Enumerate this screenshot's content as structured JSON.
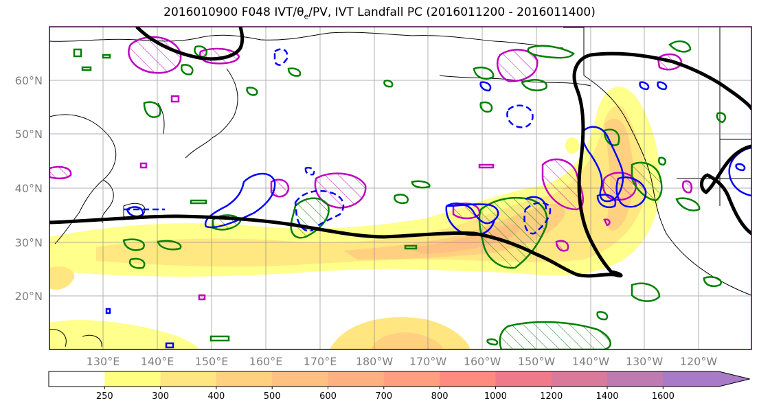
{
  "title": "2016010900 F048 IVT/θ",
  "title_sub": "e",
  "title_tail": "/PV, IVT Landfall PC (2016011200 - 2016011400)",
  "lat_labels": [
    "60°N",
    "50°N",
    "40°N",
    "30°N",
    "20°N"
  ],
  "lon_labels": [
    "130°E",
    "140°E",
    "150°E",
    "160°E",
    "170°E",
    "180°W",
    "170°W",
    "160°W",
    "150°W",
    "140°W",
    "130°W",
    "120°W"
  ],
  "colorbar": {
    "ticks": [
      "250",
      "300",
      "400",
      "500",
      "600",
      "700",
      "800",
      "1000",
      "1200",
      "1400",
      "1600"
    ],
    "colors": [
      "#ffffff",
      "#ffff80",
      "#ffe680",
      "#ffd080",
      "#ffc080",
      "#ffb080",
      "#ff9f80",
      "#ff8a80",
      "#f07a8a",
      "#d97a9a",
      "#bf7ab0",
      "#a87ac8"
    ]
  },
  "contour_colors": {
    "ivt_landfall_pc": "#000000",
    "theta_e_positive": "#008000",
    "theta_e_negative": "#0000ff",
    "pv": "#c000c0"
  }
}
